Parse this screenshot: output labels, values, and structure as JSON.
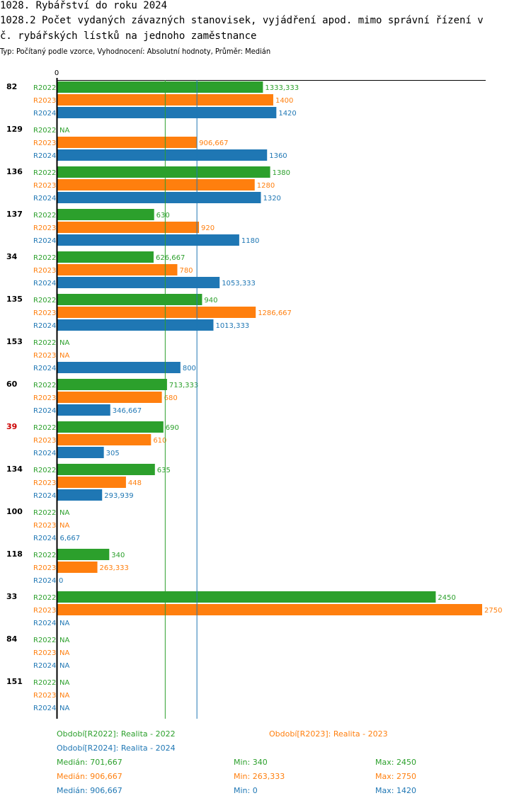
{
  "header": {
    "title": "1028. Rybářství do roku 2024",
    "subtitle_line1": "1028.2 Počet vydaných závazných stanovisek, vyjádření apod. mimo správní řízení v",
    "subtitle_line2": "č. rybářských lístků na jednoho zaměstnance",
    "type_line": "Typ: Počítaný podle vzorce, Vyhodnocení: Absolutní hodnoty, Průměr: Medián"
  },
  "colors": {
    "R2022": "#2ca02c",
    "R2023": "#ff7f0e",
    "R2024": "#1f77b4",
    "highlight": "#cc0000"
  },
  "chart_data": {
    "type": "bar",
    "orientation": "horizontal",
    "axis_zero_label": "0",
    "xlim": [
      0,
      2750
    ],
    "categories": [
      "82",
      "129",
      "136",
      "137",
      "34",
      "135",
      "153",
      "60",
      "39",
      "134",
      "100",
      "118",
      "33",
      "84",
      "151"
    ],
    "highlight_category": "39",
    "series": [
      {
        "name": "R2022",
        "values": [
          1333.333,
          null,
          1380,
          630,
          626.667,
          940,
          null,
          713.333,
          690,
          635,
          null,
          340,
          2450,
          null,
          null
        ],
        "labels": [
          "1333,333",
          "NA",
          "1380",
          "630",
          "626,667",
          "940",
          "NA",
          "713,333",
          "690",
          "635",
          "NA",
          "340",
          "2450",
          "NA",
          "NA"
        ]
      },
      {
        "name": "R2023",
        "values": [
          1400,
          906.667,
          1280,
          920,
          780,
          1286.667,
          null,
          680,
          610,
          448,
          null,
          263.333,
          2750,
          null,
          null
        ],
        "labels": [
          "1400",
          "906,667",
          "1280",
          "920",
          "780",
          "1286,667",
          "NA",
          "680",
          "610",
          "448",
          "NA",
          "263,333",
          "2750",
          "NA",
          "NA"
        ]
      },
      {
        "name": "R2024",
        "values": [
          1420,
          1360,
          1320,
          1180,
          1053.333,
          1013.333,
          800,
          346.667,
          305,
          293.939,
          6.667,
          0,
          null,
          null,
          null
        ],
        "labels": [
          "1420",
          "1360",
          "1320",
          "1180",
          "1053,333",
          "1013,333",
          "800",
          "346,667",
          "305",
          "293,939",
          "6,667",
          "0",
          "NA",
          "NA",
          "NA"
        ]
      }
    ],
    "median_lines": [
      701.667,
      906.667
    ]
  },
  "legend": {
    "period_2022": "Období[R2022]: Realita - 2022",
    "period_2023": "Období[R2023]: Realita - 2023",
    "period_2024": "Období[R2024]: Realita - 2024",
    "stats": [
      {
        "median": "Medián: 701,667",
        "min": "Min: 340",
        "max": "Max: 2450"
      },
      {
        "median": "Medián: 906,667",
        "min": "Min: 263,333",
        "max": "Max: 2750"
      },
      {
        "median": "Medián: 906,667",
        "min": "Min: 0",
        "max": "Max: 1420"
      }
    ]
  }
}
